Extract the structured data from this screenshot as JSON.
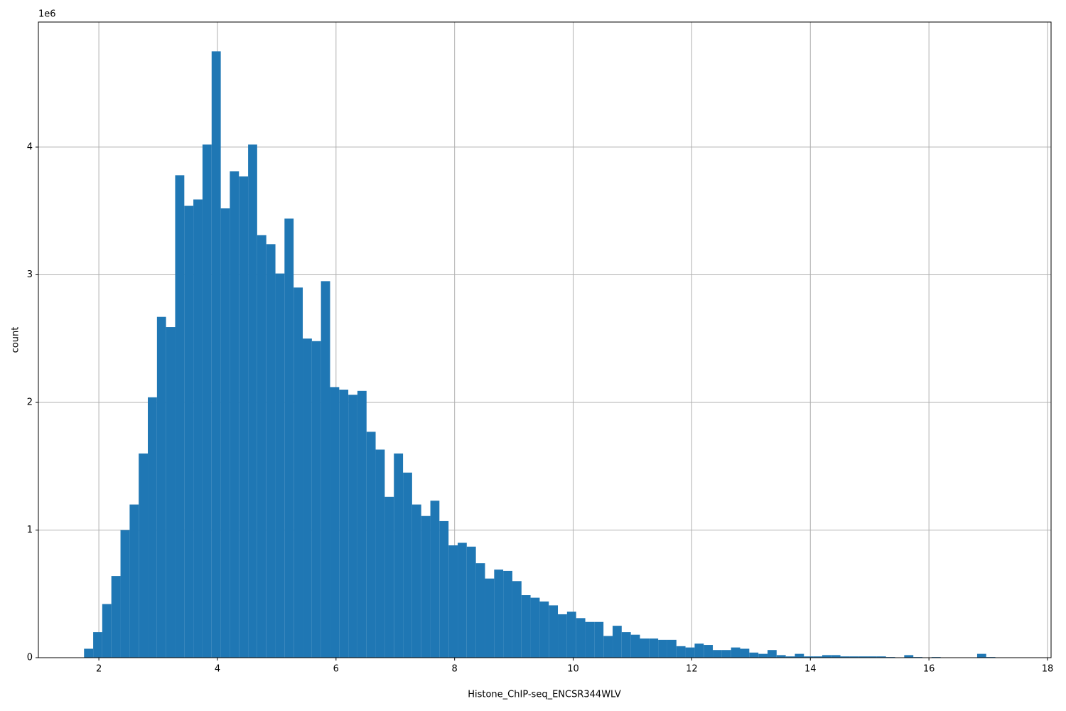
{
  "chart_data": {
    "type": "histogram",
    "x_label": "Histone_ChIP-seq_ENCSR344WLV",
    "y_label": "count",
    "y_offset_label": "1e6",
    "color": "#1f77b4",
    "grid": true,
    "xlim": [
      0.98,
      18.06
    ],
    "ylim": [
      0,
      4.98
    ],
    "xticks": [
      2,
      4,
      6,
      8,
      10,
      12,
      14,
      16,
      18
    ],
    "yticks": [
      0,
      1,
      2,
      3,
      4
    ],
    "bins": [
      1.75,
      1.904,
      2.057,
      2.211,
      2.365,
      2.519,
      2.672,
      2.826,
      2.98,
      3.133,
      3.287,
      3.441,
      3.594,
      3.748,
      3.902,
      4.056,
      4.209,
      4.363,
      4.517,
      4.67,
      4.824,
      4.978,
      5.131,
      5.285,
      5.439,
      5.593,
      5.746,
      5.9,
      6.054,
      6.207,
      6.361,
      6.515,
      6.668,
      6.822,
      6.976,
      7.13,
      7.283,
      7.437,
      7.591,
      7.744,
      7.898,
      8.052,
      8.205,
      8.359,
      8.513,
      8.667,
      8.82,
      8.974,
      9.128,
      9.281,
      9.435,
      9.589,
      9.742,
      9.896,
      10.05,
      10.204,
      10.357,
      10.511,
      10.665,
      10.818,
      10.972,
      11.126,
      11.279,
      11.433,
      11.587,
      11.741,
      11.894,
      12.048,
      12.202,
      12.355,
      12.509,
      12.663,
      12.816,
      12.97,
      13.124,
      13.278,
      13.431,
      13.585,
      13.739,
      13.892,
      14.046,
      14.2,
      14.353,
      14.507,
      14.661,
      14.815,
      14.968,
      15.122,
      15.276,
      15.429,
      15.583,
      15.737,
      15.89,
      16.044,
      16.198,
      16.352,
      16.505,
      16.659,
      16.813,
      16.966,
      17.12
    ],
    "values": [
      0.07,
      0.2,
      0.42,
      0.64,
      1.0,
      1.2,
      1.6,
      2.04,
      2.67,
      2.59,
      3.78,
      3.54,
      3.59,
      4.02,
      4.75,
      3.52,
      3.81,
      3.77,
      4.02,
      3.31,
      3.24,
      3.01,
      3.44,
      2.9,
      2.5,
      2.48,
      2.95,
      2.12,
      2.1,
      2.06,
      2.09,
      1.77,
      1.63,
      1.26,
      1.6,
      1.45,
      1.2,
      1.11,
      1.23,
      1.07,
      0.88,
      0.9,
      0.87,
      0.74,
      0.62,
      0.69,
      0.68,
      0.6,
      0.49,
      0.47,
      0.44,
      0.41,
      0.34,
      0.36,
      0.31,
      0.28,
      0.28,
      0.17,
      0.25,
      0.2,
      0.18,
      0.15,
      0.15,
      0.14,
      0.14,
      0.09,
      0.08,
      0.11,
      0.1,
      0.06,
      0.06,
      0.08,
      0.07,
      0.04,
      0.03,
      0.06,
      0.02,
      0.01,
      0.03,
      0.01,
      0.01,
      0.02,
      0.02,
      0.01,
      0.01,
      0.01,
      0.01,
      0.01,
      0.005,
      0,
      0.02,
      0.005,
      0,
      0.005,
      0,
      0,
      0,
      0,
      0.03,
      0.005
    ]
  }
}
